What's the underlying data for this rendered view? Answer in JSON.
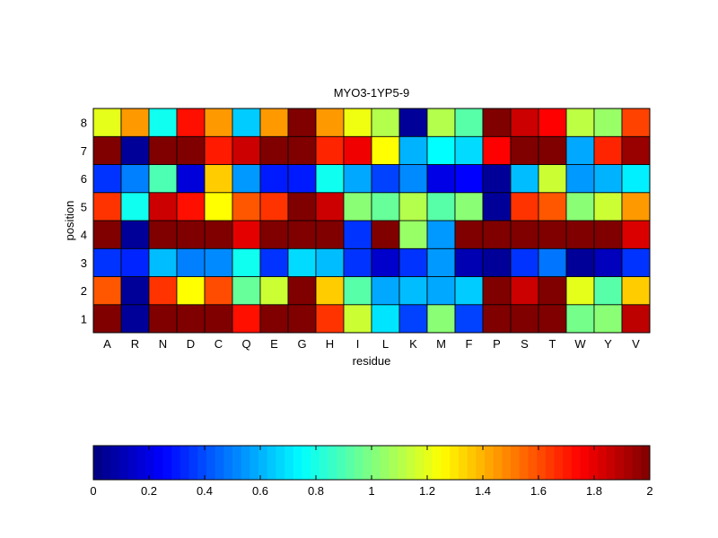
{
  "chart_data": {
    "type": "heatmap",
    "title": "MYO3-1YP5-9",
    "xlabel": "residue",
    "ylabel": "position",
    "x_categories": [
      "A",
      "R",
      "N",
      "D",
      "C",
      "Q",
      "E",
      "G",
      "H",
      "I",
      "L",
      "K",
      "M",
      "F",
      "P",
      "S",
      "T",
      "W",
      "Y",
      "V"
    ],
    "y_categories": [
      "1",
      "2",
      "3",
      "4",
      "5",
      "6",
      "7",
      "8"
    ],
    "colormap": "jet",
    "clim": [
      0,
      2
    ],
    "colorbar": {
      "placement": "bottom",
      "ticks": [
        0,
        0.2,
        0.4,
        0.6,
        0.8,
        1,
        1.2,
        1.4,
        1.6,
        1.8,
        2
      ],
      "tick_labels": [
        "0",
        "0.2",
        "0.4",
        "0.6",
        "0.8",
        "1",
        "1.2",
        "1.4",
        "1.6",
        "1.8",
        "2"
      ]
    },
    "values_by_position": {
      "1": [
        2.0,
        0.05,
        2.0,
        2.0,
        2.0,
        1.72,
        2.0,
        2.0,
        1.65,
        1.15,
        0.7,
        0.38,
        1.02,
        0.38,
        2.0,
        2.0,
        2.0,
        0.98,
        1.02,
        1.88
      ],
      "2": [
        1.58,
        0.05,
        1.65,
        1.25,
        1.6,
        0.95,
        1.15,
        2.0,
        1.35,
        0.92,
        0.58,
        0.62,
        0.58,
        0.65,
        2.0,
        1.85,
        2.0,
        1.2,
        0.92,
        1.35
      ],
      "3": [
        0.35,
        0.32,
        0.62,
        0.5,
        0.52,
        0.78,
        0.35,
        0.68,
        0.62,
        0.35,
        0.15,
        0.35,
        0.55,
        0.1,
        0.05,
        0.35,
        0.48,
        0.05,
        0.12,
        0.35
      ],
      "4": [
        2.0,
        0.05,
        2.0,
        2.0,
        2.0,
        1.8,
        2.0,
        2.0,
        2.0,
        0.35,
        2.0,
        1.05,
        0.55,
        2.0,
        2.0,
        2.0,
        2.0,
        2.0,
        2.0,
        1.82
      ],
      "5": [
        1.65,
        0.78,
        1.85,
        1.72,
        1.25,
        1.58,
        1.65,
        2.0,
        1.85,
        1.02,
        0.95,
        1.1,
        0.92,
        1.02,
        0.05,
        1.65,
        1.58,
        1.02,
        1.15,
        1.45
      ],
      "6": [
        0.35,
        0.5,
        0.9,
        0.18,
        1.35,
        0.55,
        0.3,
        0.3,
        0.78,
        0.58,
        0.38,
        0.52,
        0.2,
        0.25,
        0.05,
        0.62,
        1.15,
        0.55,
        0.6,
        0.72
      ],
      "7": [
        2.0,
        0.05,
        2.0,
        2.0,
        1.7,
        1.85,
        2.0,
        2.0,
        1.68,
        1.78,
        1.25,
        0.6,
        0.75,
        0.68,
        1.75,
        2.0,
        2.0,
        0.58,
        1.68,
        1.95
      ],
      "8": [
        1.2,
        1.45,
        0.78,
        1.72,
        1.45,
        0.65,
        1.45,
        2.0,
        1.45,
        1.22,
        1.1,
        0.05,
        1.1,
        0.92,
        2.0,
        1.85,
        1.75,
        1.12,
        1.05,
        1.62
      ]
    }
  }
}
